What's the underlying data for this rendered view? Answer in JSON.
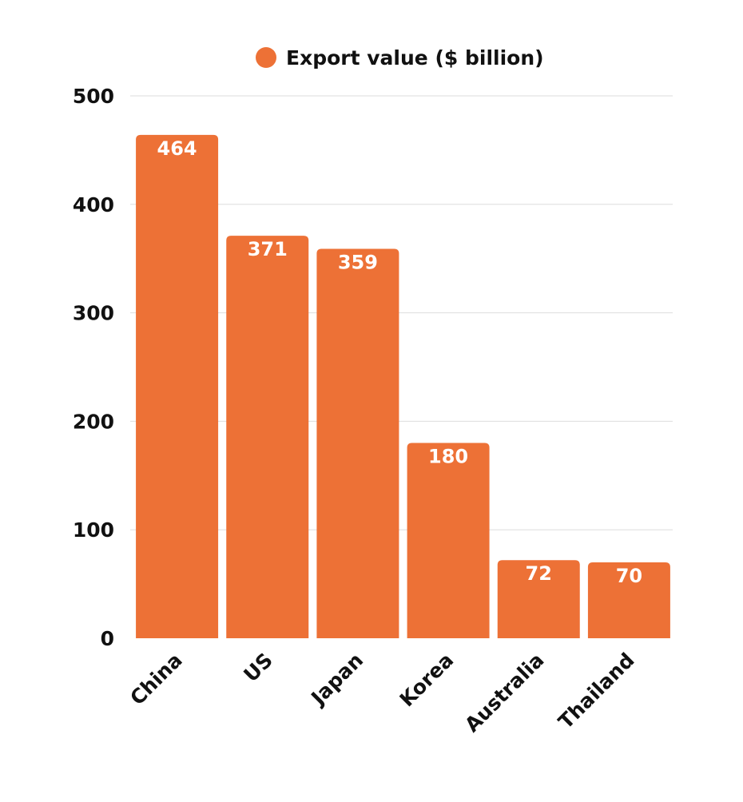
{
  "chart_data": {
    "type": "bar",
    "categories": [
      "China",
      "US",
      "Japan",
      "Korea",
      "Australia",
      "Thailand"
    ],
    "series": [
      {
        "name": "Export value ($ billion)",
        "values": [
          464,
          371,
          359,
          180,
          72,
          70
        ],
        "color": "#ED7136"
      }
    ],
    "ylim": [
      0,
      500
    ],
    "yticks": [
      0,
      100,
      200,
      300,
      400,
      500
    ],
    "grid": true,
    "legend_position": "top-center",
    "data_labels": "inside-top"
  }
}
